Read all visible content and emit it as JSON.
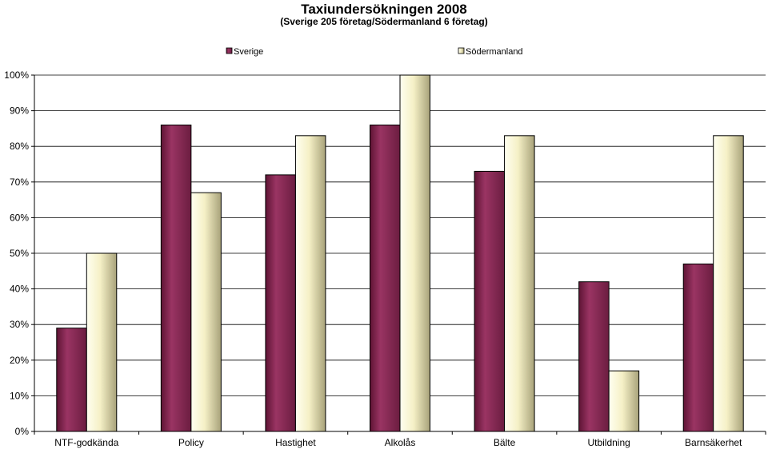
{
  "chart_data": {
    "type": "bar",
    "title": "Taxiundersökningen 2008",
    "subtitle": "(Sverige 205 företag/Södermanland 6 företag)",
    "categories": [
      "NTF-godkända",
      "Policy",
      "Hastighet",
      "Alkolås",
      "Bälte",
      "Utbildning",
      "Barnsäkerhet"
    ],
    "series": [
      {
        "name": "Sverige",
        "values": [
          29,
          86,
          72,
          86,
          73,
          42,
          47
        ],
        "color": "#8B2A55"
      },
      {
        "name": "Södermanland",
        "values": [
          50,
          67,
          83,
          100,
          83,
          17,
          83
        ],
        "color": "#F2EDC0"
      }
    ],
    "ylim": [
      0,
      100
    ],
    "yticks": [
      0,
      10,
      20,
      30,
      40,
      50,
      60,
      70,
      80,
      90,
      100
    ],
    "ytick_suffix": "%",
    "xlabel": "",
    "ylabel": "",
    "grid": true,
    "legend_position": "top"
  }
}
